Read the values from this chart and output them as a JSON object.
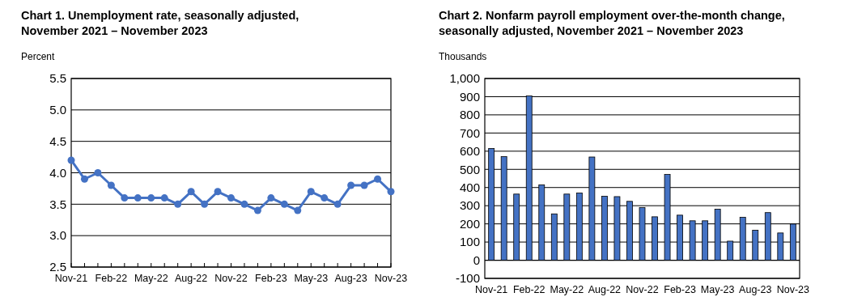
{
  "chart_data": [
    {
      "type": "line",
      "title": "Chart 1. Unemployment rate, seasonally adjusted, November 2021 – November 2023",
      "ylabel": "Percent",
      "categories": [
        "Nov-21",
        null,
        null,
        "Feb-22",
        null,
        null,
        "May-22",
        null,
        null,
        "Aug-22",
        null,
        null,
        "Nov-22",
        null,
        null,
        "Feb-23",
        null,
        null,
        "May-23",
        null,
        null,
        "Aug-23",
        null,
        null,
        "Nov-23"
      ],
      "series": [
        {
          "color": "#4472c4",
          "values": [
            4.2,
            3.9,
            4.0,
            3.8,
            3.6,
            3.6,
            3.6,
            3.6,
            3.5,
            3.7,
            3.5,
            3.7,
            3.6,
            3.5,
            3.4,
            3.6,
            3.5,
            3.4,
            3.7,
            3.6,
            3.5,
            3.8,
            3.8,
            3.9,
            3.7
          ]
        }
      ],
      "ylim": [
        2.5,
        5.5
      ],
      "yticks": [
        {
          "value": 2.5,
          "label": "2.5"
        },
        {
          "value": 3,
          "label": "3.0"
        },
        {
          "value": 3.5,
          "label": "3.5"
        },
        {
          "value": 4,
          "label": "4.0"
        },
        {
          "value": 4.5,
          "label": "4.5"
        },
        {
          "value": 5,
          "label": "5.0"
        },
        {
          "value": 5.5,
          "label": "5.5"
        }
      ],
      "grid": "y",
      "marker": "circle"
    },
    {
      "type": "bar",
      "title": "Chart 2. Nonfarm payroll employment over-the-month change, seasonally adjusted, November 2021 – November 2023",
      "ylabel": "Thousands",
      "categories": [
        "Nov-21",
        null,
        null,
        "Feb-22",
        null,
        null,
        "May-22",
        null,
        null,
        "Aug-22",
        null,
        null,
        "Nov-22",
        null,
        null,
        "Feb-23",
        null,
        null,
        "May-23",
        null,
        null,
        "Aug-23",
        null,
        null,
        "Nov-23"
      ],
      "series": [
        {
          "color": "#4472c4",
          "values": [
            615,
            570,
            364,
            904,
            415,
            255,
            364,
            370,
            568,
            352,
            350,
            324,
            290,
            239,
            472,
            248,
            217,
            217,
            281,
            105,
            236,
            165,
            262,
            150,
            199
          ]
        }
      ],
      "ylim": [
        -100,
        1000
      ],
      "yticks": [
        -100,
        0,
        100,
        200,
        300,
        400,
        500,
        600,
        700,
        800,
        900,
        {
          "value": 1000,
          "label": "1,000"
        }
      ],
      "grid": "y"
    }
  ]
}
